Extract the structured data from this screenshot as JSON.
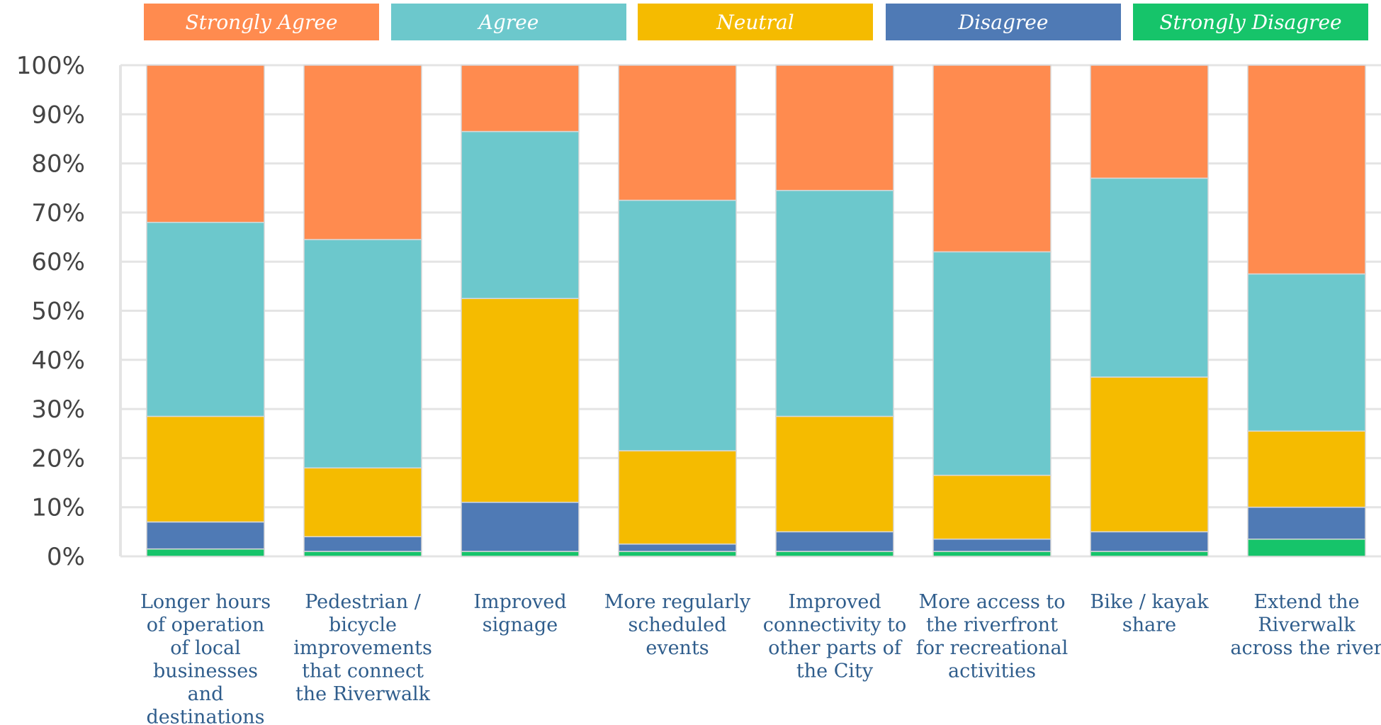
{
  "chart_data": {
    "type": "bar",
    "stacked": true,
    "normalized": true,
    "categories": [
      "Longer hours of operation of local businesses and destinations",
      "Pedestrian / bicycle improvements that connect the Riverwalk",
      "Improved signage",
      "More regularly scheduled events",
      "Improved connectivity to other parts of the City",
      "More access to the riverfront for recreational activities",
      "Bike / kayak share",
      "Extend the Riverwalk across the river"
    ],
    "category_lines": [
      [
        "Longer hours",
        "of operation",
        "of local",
        "businesses",
        "and",
        "destinations"
      ],
      [
        "Pedestrian /",
        "bicycle",
        "improvements",
        "that connect",
        "the Riverwalk"
      ],
      [
        "Improved",
        "signage"
      ],
      [
        "More regularly",
        "scheduled",
        "events"
      ],
      [
        "Improved",
        "connectivity to",
        "other parts of",
        "the City"
      ],
      [
        "More access to",
        "the riverfront",
        "for recreational",
        "activities"
      ],
      [
        "Bike / kayak",
        "share"
      ],
      [
        "Extend the",
        "Riverwalk",
        "across the river"
      ]
    ],
    "series": [
      {
        "name": "Strongly Disagree",
        "color": "#16c46a",
        "values": [
          1.5,
          1,
          1,
          1,
          1,
          1,
          1,
          3.5
        ]
      },
      {
        "name": "Disagree",
        "color": "#4f7ab5",
        "values": [
          5.5,
          3,
          10,
          1.5,
          4,
          2.5,
          4,
          6.5
        ]
      },
      {
        "name": "Neutral",
        "color": "#f5bb00",
        "values": [
          21.5,
          14,
          41.5,
          19,
          23.5,
          13,
          31.5,
          15.5
        ]
      },
      {
        "name": "Agree",
        "color": "#6cc8cc",
        "values": [
          39.5,
          46.5,
          34,
          51,
          46,
          45.5,
          40.5,
          32
        ]
      },
      {
        "name": "Strongly Agree",
        "color": "#ff8b4f",
        "values": [
          32,
          35.5,
          13.5,
          27.5,
          25.5,
          38,
          23,
          42.5
        ]
      }
    ],
    "legend": [
      "Strongly Agree",
      "Agree",
      "Neutral",
      "Disagree",
      "Strongly Disagree"
    ],
    "legend_placement": "top",
    "yticks": [
      "0%",
      "10%",
      "20%",
      "30%",
      "40%",
      "50%",
      "60%",
      "70%",
      "80%",
      "90%",
      "100%"
    ],
    "ylim": [
      0,
      100
    ],
    "title": "",
    "xlabel": "",
    "ylabel": "",
    "grid": true
  }
}
